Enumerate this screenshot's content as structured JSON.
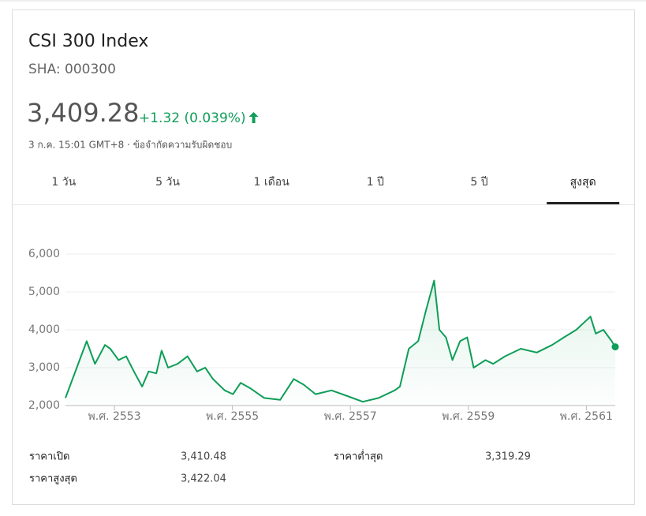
{
  "header": {
    "title": "CSI 300 Index",
    "ticker": "SHA: 000300",
    "price": "3,409.28",
    "change": "+1.32 (0.039%)",
    "timestamp": "3 ก.ค. 15:01 GMT+8 · ข้อจำกัดความรับผิดชอบ"
  },
  "tabs": {
    "items": [
      "1 วัน",
      "5 วัน",
      "1 เดือน",
      "1 ปี",
      "5 ปี",
      "สูงสุด"
    ],
    "active": 5
  },
  "chart_data": {
    "type": "line",
    "color": "#0f9d58",
    "area": true,
    "grid": true,
    "x": [
      2552.17,
      2552.53,
      2552.67,
      2552.84,
      2552.93,
      2553.07,
      2553.2,
      2553.33,
      2553.47,
      2553.58,
      2553.71,
      2553.8,
      2553.91,
      2554.07,
      2554.24,
      2554.4,
      2554.54,
      2554.67,
      2554.87,
      2555.01,
      2555.14,
      2555.31,
      2555.54,
      2555.81,
      2556.04,
      2556.21,
      2556.41,
      2556.68,
      2556.95,
      2557.21,
      2557.48,
      2557.75,
      2557.84,
      2557.99,
      2558.15,
      2558.28,
      2558.42,
      2558.51,
      2558.62,
      2558.73,
      2558.86,
      2558.98,
      2559.09,
      2559.29,
      2559.42,
      2559.62,
      2559.89,
      2560.16,
      2560.42,
      2560.62,
      2560.83,
      2561.07,
      2561.16,
      2561.29,
      2561.43,
      2561.49
    ],
    "values": [
      2200,
      3700,
      3100,
      3600,
      3500,
      3200,
      3300,
      2900,
      2500,
      2900,
      2850,
      3450,
      3000,
      3100,
      3300,
      2900,
      3000,
      2700,
      2400,
      2300,
      2600,
      2450,
      2200,
      2150,
      2700,
      2550,
      2300,
      2400,
      2250,
      2100,
      2200,
      2400,
      2500,
      3500,
      3700,
      4500,
      5300,
      4000,
      3800,
      3200,
      3700,
      3800,
      3000,
      3200,
      3100,
      3300,
      3500,
      3400,
      3600,
      3800,
      4000,
      4350,
      3900,
      4000,
      3700,
      3550
    ],
    "xlim": [
      2552.17,
      2561.49
    ],
    "xticks": [
      {
        "value": 2553,
        "label": "พ.ศ. 2553"
      },
      {
        "value": 2555,
        "label": "พ.ศ. 2555"
      },
      {
        "value": 2557,
        "label": "พ.ศ. 2557"
      },
      {
        "value": 2559,
        "label": "พ.ศ. 2559"
      },
      {
        "value": 2561,
        "label": "พ.ศ. 2561"
      }
    ],
    "ylim": [
      2000,
      6000
    ],
    "yticks": [
      {
        "value": 2000,
        "label": "2,000"
      },
      {
        "value": 3000,
        "label": "3,000"
      },
      {
        "value": 4000,
        "label": "4,000"
      },
      {
        "value": 5000,
        "label": "5,000"
      },
      {
        "value": 6000,
        "label": "6,000"
      }
    ]
  },
  "stats": [
    [
      "ราคาเปิด",
      "3,410.48"
    ],
    [
      "ราคาต่ำสุด",
      "3,319.29"
    ],
    [
      "ราคาสูงสุด",
      "3,422.04"
    ]
  ]
}
